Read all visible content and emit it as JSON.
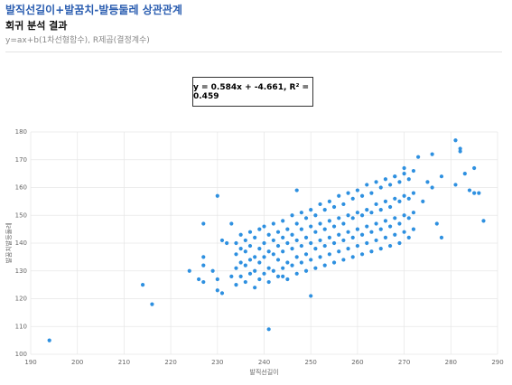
{
  "header": {
    "title": "발직선길이+발꿈치-발등둘레 상관관계",
    "subtitle": "회귀 분석 결과",
    "description": "y=ax+b(1차선형함수), R제곱(결정계수)"
  },
  "chart_data": {
    "type": "scatter",
    "annotation": "y = 0.584x + -4.661, R² = 0.459",
    "x_label": "발직선길이",
    "y_label": "발꿈치발등둘레",
    "color": "#2e90e0",
    "grid": true,
    "xlim": [
      190,
      290
    ],
    "xticks": [
      190,
      200,
      210,
      220,
      230,
      240,
      250,
      260,
      270,
      280,
      290
    ],
    "ylim": [
      100,
      180
    ],
    "yticks": [
      100,
      110,
      120,
      130,
      140,
      150,
      160,
      170,
      180
    ],
    "x": [
      194,
      214,
      216,
      241,
      230,
      227,
      224,
      226,
      227,
      227,
      227,
      229,
      230,
      230,
      231,
      231,
      232,
      233,
      233,
      285,
      283,
      287,
      282,
      281,
      281,
      284,
      285,
      286,
      282,
      278,
      277,
      276,
      273,
      278,
      276,
      275,
      274,
      270,
      268,
      247,
      244,
      250,
      234,
      234,
      234,
      234,
      235,
      235,
      235,
      235,
      236,
      236,
      236,
      236,
      237,
      237,
      237,
      237,
      238,
      238,
      238,
      238,
      239,
      239,
      239,
      239,
      240,
      240,
      240,
      240,
      241,
      241,
      241,
      241,
      242,
      242,
      242,
      242,
      243,
      243,
      243,
      243,
      244,
      244,
      244,
      244,
      245,
      245,
      245,
      245,
      246,
      246,
      246,
      246,
      247,
      247,
      247,
      247,
      248,
      248,
      248,
      248,
      249,
      249,
      249,
      249,
      250,
      250,
      250,
      250,
      251,
      251,
      251,
      251,
      252,
      252,
      252,
      252,
      253,
      253,
      253,
      253,
      254,
      254,
      254,
      254,
      255,
      255,
      255,
      255,
      256,
      256,
      256,
      256,
      257,
      257,
      257,
      257,
      258,
      258,
      258,
      258,
      259,
      259,
      259,
      259,
      260,
      260,
      260,
      260,
      261,
      261,
      261,
      261,
      262,
      262,
      262,
      262,
      263,
      263,
      263,
      263,
      264,
      264,
      264,
      264,
      265,
      265,
      265,
      265,
      266,
      266,
      266,
      266,
      267,
      267,
      267,
      267,
      268,
      268,
      268,
      268,
      269,
      269,
      269,
      269,
      270,
      270,
      270,
      270,
      271,
      271,
      271,
      271,
      272,
      272,
      272,
      272
    ],
    "values": [
      105,
      125,
      118,
      109,
      157,
      147,
      130,
      127,
      126,
      135,
      132,
      130,
      123,
      127,
      122,
      141,
      140,
      128,
      147,
      167,
      165,
      148,
      174,
      177,
      161,
      159,
      158,
      158,
      173,
      142,
      147,
      172,
      171,
      164,
      160,
      162,
      155,
      167,
      164,
      159,
      128,
      121,
      125,
      131,
      136,
      140,
      128,
      133,
      138,
      143,
      126,
      132,
      137,
      141,
      129,
      134,
      139,
      144,
      124,
      130,
      135,
      142,
      127,
      133,
      138,
      145,
      129,
      135,
      140,
      146,
      126,
      131,
      137,
      143,
      130,
      136,
      141,
      147,
      128,
      134,
      139,
      144,
      131,
      137,
      142,
      148,
      127,
      133,
      140,
      145,
      132,
      138,
      143,
      150,
      129,
      135,
      141,
      147,
      133,
      139,
      145,
      151,
      130,
      136,
      142,
      149,
      134,
      140,
      146,
      152,
      131,
      138,
      144,
      150,
      135,
      141,
      147,
      154,
      132,
      139,
      145,
      152,
      136,
      142,
      148,
      155,
      133,
      140,
      146,
      153,
      137,
      143,
      149,
      157,
      134,
      141,
      147,
      154,
      138,
      144,
      150,
      158,
      135,
      142,
      149,
      156,
      139,
      145,
      151,
      159,
      136,
      143,
      150,
      157,
      140,
      146,
      152,
      161,
      137,
      144,
      151,
      158,
      141,
      147,
      154,
      162,
      138,
      145,
      152,
      160,
      142,
      148,
      155,
      163,
      139,
      146,
      153,
      161,
      143,
      149,
      156,
      164,
      140,
      147,
      155,
      162,
      144,
      150,
      157,
      165,
      142,
      149,
      156,
      163,
      145,
      151,
      158,
      166
    ]
  }
}
